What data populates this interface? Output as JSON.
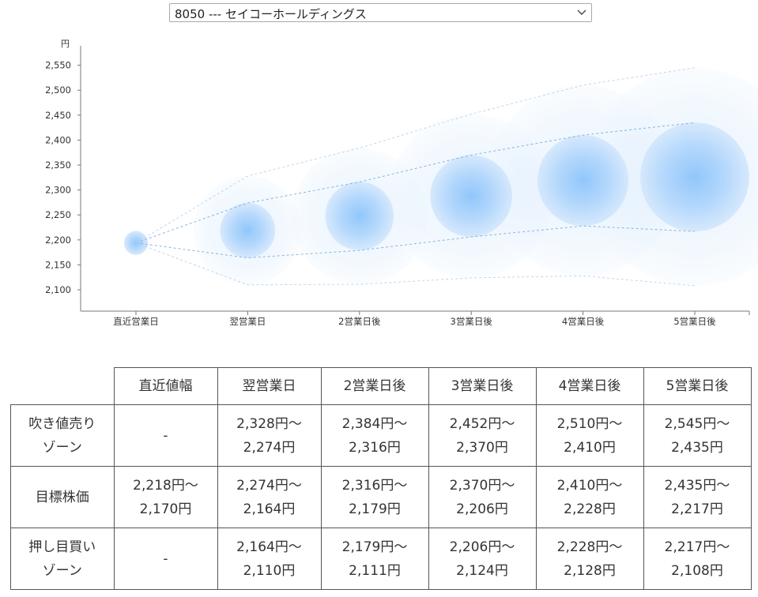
{
  "selector": {
    "selected": "8050 --- セイコーホールディングス"
  },
  "chart_data": {
    "type": "scatter",
    "ylabel": "円",
    "ylim": [
      2075,
      2575
    ],
    "yticks": [
      2100,
      2150,
      2200,
      2250,
      2300,
      2350,
      2400,
      2450,
      2500,
      2550
    ],
    "ytick_labels": [
      "2,100",
      "2,150",
      "2,200",
      "2,250",
      "2,300",
      "2,350",
      "2,400",
      "2,450",
      "2,500",
      "2,550"
    ],
    "categories": [
      "直近営業日",
      "翌営業日",
      "2営業日後",
      "3営業日後",
      "4営業日後",
      "5営業日後"
    ],
    "center": [
      2194,
      2219,
      2248,
      2288,
      2319,
      2326
    ],
    "target_high": [
      2218,
      2274,
      2316,
      2370,
      2410,
      2435
    ],
    "target_low": [
      2170,
      2164,
      2179,
      2206,
      2228,
      2217
    ],
    "sell_high": [
      null,
      2328,
      2384,
      2452,
      2510,
      2545
    ],
    "buy_low": [
      null,
      2110,
      2111,
      2124,
      2128,
      2108
    ],
    "colors": {
      "bubble": "#4a9be8",
      "line": "#7aaed8",
      "axis": "#777777"
    }
  },
  "table": {
    "headers": [
      "直近値幅",
      "翌営業日",
      "2営業日後",
      "3営業日後",
      "4営業日後",
      "5営業日後"
    ],
    "rows": [
      {
        "label_lines": [
          "吹き値売り",
          "ゾーン"
        ],
        "cells": [
          [
            "-"
          ],
          [
            "2,328円～",
            "2,274円"
          ],
          [
            "2,384円～",
            "2,316円"
          ],
          [
            "2,452円～",
            "2,370円"
          ],
          [
            "2,510円～",
            "2,410円"
          ],
          [
            "2,545円～",
            "2,435円"
          ]
        ]
      },
      {
        "label_lines": [
          "目標株価"
        ],
        "cells": [
          [
            "2,218円～",
            "2,170円"
          ],
          [
            "2,274円～",
            "2,164円"
          ],
          [
            "2,316円～",
            "2,179円"
          ],
          [
            "2,370円～",
            "2,206円"
          ],
          [
            "2,410円～",
            "2,228円"
          ],
          [
            "2,435円～",
            "2,217円"
          ]
        ]
      },
      {
        "label_lines": [
          "押し目買い",
          "ゾーン"
        ],
        "cells": [
          [
            "-"
          ],
          [
            "2,164円～",
            "2,110円"
          ],
          [
            "2,179円～",
            "2,111円"
          ],
          [
            "2,206円～",
            "2,124円"
          ],
          [
            "2,228円～",
            "2,128円"
          ],
          [
            "2,217円～",
            "2,108円"
          ]
        ]
      }
    ]
  }
}
